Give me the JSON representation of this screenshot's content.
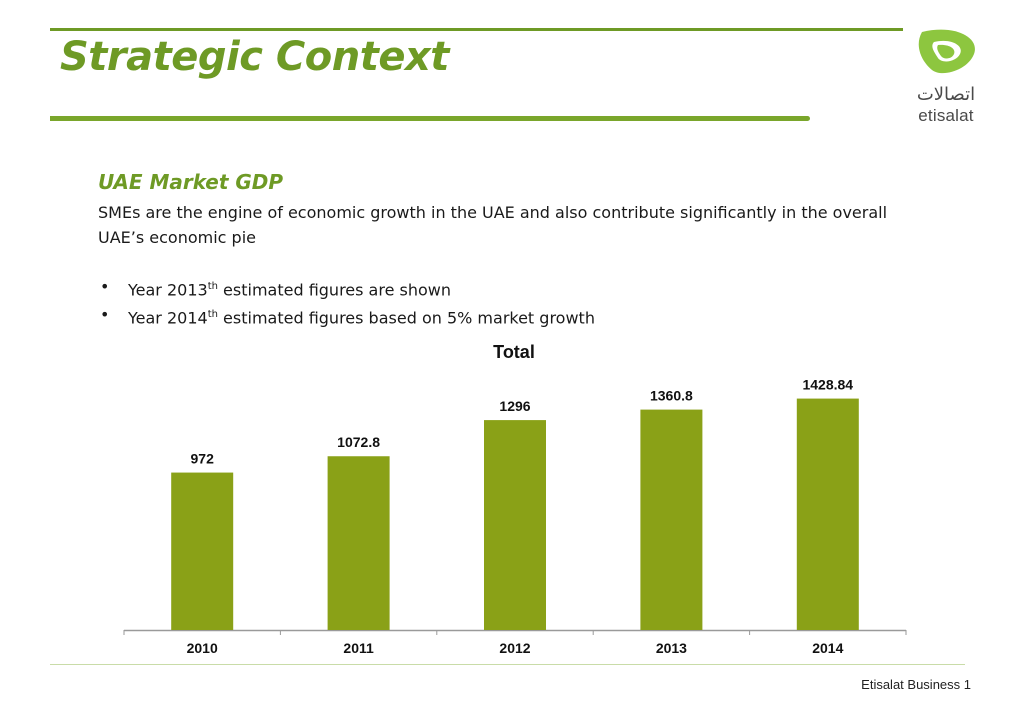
{
  "header": {
    "title": "Strategic Context",
    "logo_arabic": "اتصالات",
    "logo_text": "etisalat"
  },
  "section": {
    "heading": "UAE Market GDP",
    "intro": "SMEs are the engine of economic growth in the UAE and also contribute significantly in the overall UAE’s economic pie",
    "bullets": [
      {
        "pre": "Year 2013",
        "sup": "th",
        "post": " estimated figures are shown"
      },
      {
        "pre": "Year 2014",
        "sup": "th",
        "post": " estimated figures based on 5% market growth"
      }
    ]
  },
  "chart_data": {
    "type": "bar",
    "title": "Total",
    "categories": [
      "2010",
      "2011",
      "2012",
      "2013",
      "2014"
    ],
    "values": [
      972,
      1072.8,
      1296,
      1360.8,
      1428.84
    ],
    "value_labels": [
      "972",
      "1072.8",
      "1296",
      "1360.8",
      "1428.84"
    ],
    "xlabel": "",
    "ylabel": "",
    "ylim": [
      0,
      1630
    ],
    "grid": false,
    "legend": "none",
    "bar_color": "#8aa117"
  },
  "footer": {
    "text": "Etisalat Business 1"
  },
  "colors": {
    "brand_green": "#6e9a25",
    "logo_green": "#8dc63f"
  }
}
